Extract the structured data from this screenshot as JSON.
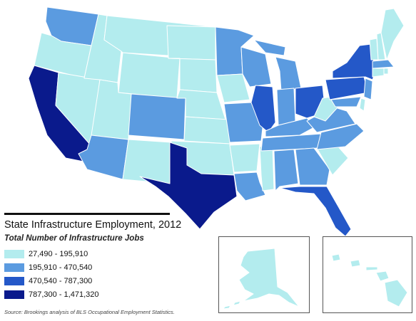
{
  "legend": {
    "title": "State Infrastructure Employment, 2012",
    "subtitle": "Total Number of Infrastructure Jobs",
    "items": [
      {
        "label": "27,490 - 195,910",
        "color": "#b3ecee"
      },
      {
        "label": "195,910 - 470,540",
        "color": "#5b9be0"
      },
      {
        "label": "470,540 - 787,300",
        "color": "#2458c8"
      },
      {
        "label": "787,300 - 1,471,320",
        "color": "#0a1a8c"
      }
    ]
  },
  "source": "Source: Brookings analysis of BLS Occupational Employment Statistics.",
  "states": {
    "WA": 2,
    "OR": 1,
    "CA": 4,
    "NV": 1,
    "ID": 1,
    "MT": 1,
    "WY": 1,
    "UT": 1,
    "AZ": 2,
    "CO": 2,
    "NM": 1,
    "ND": 1,
    "SD": 1,
    "NE": 1,
    "KS": 1,
    "OK": 1,
    "TX": 4,
    "MN": 2,
    "IA": 1,
    "MO": 2,
    "AR": 1,
    "LA": 2,
    "WI": 2,
    "IL": 3,
    "MS": 1,
    "MI": 2,
    "IN": 2,
    "OH": 3,
    "KY": 2,
    "TN": 2,
    "AL": 2,
    "GA": 2,
    "FL": 3,
    "SC": 1,
    "NC": 2,
    "VA": 2,
    "WV": 1,
    "PA": 3,
    "NY": 3,
    "NJ": 2,
    "DE": 1,
    "MD": 2,
    "VT": 1,
    "NH": 1,
    "ME": 1,
    "MA": 2,
    "CT": 1,
    "RI": 1,
    "AK": 1,
    "HI": 1
  }
}
